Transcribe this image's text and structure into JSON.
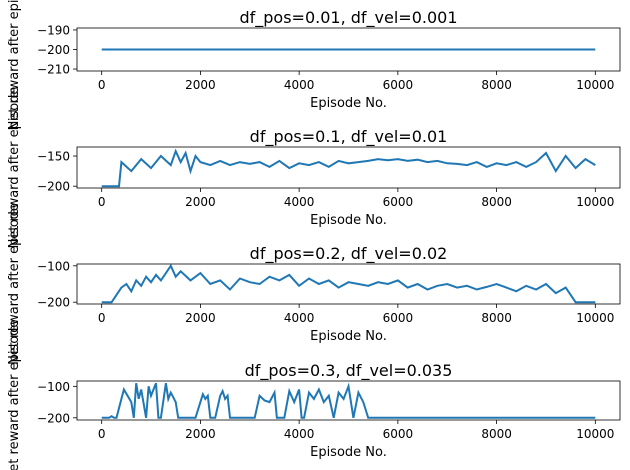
{
  "chart_data": [
    {
      "type": "line",
      "title": "df_pos=0.01, df_vel=0.001",
      "xlabel": "Episode No.",
      "ylabel": "Net reward after episode",
      "xlim": [
        -500,
        10500
      ],
      "ylim": [
        -211,
        -189
      ],
      "xticks": [
        0,
        2000,
        4000,
        6000,
        8000,
        10000
      ],
      "yticks": [
        -190,
        -200,
        -210
      ],
      "series": [
        {
          "color": "#1f77b4",
          "x": [
            0,
            10000
          ],
          "y": [
            -200,
            -200
          ]
        }
      ]
    },
    {
      "type": "line",
      "title": "df_pos=0.1, df_vel=0.01",
      "xlabel": "Episode No.",
      "ylabel": "Net reward after episode",
      "xlim": [
        -500,
        10500
      ],
      "ylim": [
        -203,
        -135
      ],
      "xticks": [
        0,
        2000,
        4000,
        6000,
        8000,
        10000
      ],
      "yticks": [
        -150,
        -200
      ],
      "series": [
        {
          "color": "#1f77b4",
          "x": [
            0,
            350,
            400,
            600,
            800,
            1000,
            1200,
            1400,
            1500,
            1600,
            1700,
            1800,
            1900,
            2000,
            2200,
            2400,
            2600,
            2800,
            3000,
            3200,
            3400,
            3600,
            3800,
            4000,
            4200,
            4400,
            4600,
            4800,
            5000,
            5200,
            5400,
            5600,
            5800,
            6000,
            6200,
            6400,
            6600,
            6800,
            7000,
            7200,
            7400,
            7600,
            7800,
            8000,
            8200,
            8400,
            8600,
            8800,
            9000,
            9200,
            9400,
            9600,
            9800,
            10000
          ],
          "y": [
            -200,
            -200,
            -160,
            -175,
            -155,
            -170,
            -150,
            -165,
            -142,
            -160,
            -145,
            -175,
            -150,
            -160,
            -165,
            -158,
            -165,
            -160,
            -163,
            -160,
            -168,
            -158,
            -170,
            -162,
            -165,
            -160,
            -168,
            -158,
            -162,
            -160,
            -158,
            -155,
            -157,
            -155,
            -158,
            -156,
            -160,
            -158,
            -162,
            -163,
            -165,
            -160,
            -168,
            -162,
            -165,
            -160,
            -168,
            -160,
            -145,
            -175,
            -150,
            -170,
            -155,
            -165
          ]
        }
      ]
    },
    {
      "type": "line",
      "title": "df_pos=0.2, df_vel=0.02",
      "xlabel": "Episode No.",
      "ylabel": "Net reward after episode",
      "xlim": [
        -500,
        10500
      ],
      "ylim": [
        -205,
        -95
      ],
      "xticks": [
        0,
        2000,
        4000,
        6000,
        8000,
        10000
      ],
      "yticks": [
        -100,
        -200
      ],
      "series": [
        {
          "color": "#1f77b4",
          "x": [
            0,
            200,
            300,
            400,
            500,
            600,
            700,
            800,
            900,
            1000,
            1100,
            1200,
            1300,
            1400,
            1500,
            1600,
            1800,
            2000,
            2200,
            2400,
            2600,
            2800,
            3000,
            3200,
            3400,
            3600,
            3800,
            4000,
            4200,
            4400,
            4600,
            4800,
            5000,
            5200,
            5400,
            5600,
            5800,
            6000,
            6200,
            6400,
            6600,
            6800,
            7000,
            7200,
            7400,
            7600,
            7800,
            8000,
            8200,
            8400,
            8600,
            8800,
            9000,
            9200,
            9400,
            9600,
            10000
          ],
          "y": [
            -200,
            -200,
            -180,
            -160,
            -150,
            -170,
            -140,
            -155,
            -130,
            -145,
            -125,
            -140,
            -120,
            -100,
            -130,
            -115,
            -140,
            -120,
            -150,
            -140,
            -165,
            -135,
            -145,
            -150,
            -130,
            -140,
            -125,
            -155,
            -135,
            -150,
            -140,
            -160,
            -145,
            -150,
            -155,
            -145,
            -150,
            -140,
            -160,
            -150,
            -165,
            -155,
            -150,
            -160,
            -155,
            -165,
            -158,
            -150,
            -160,
            -170,
            -155,
            -165,
            -150,
            -175,
            -160,
            -200,
            -200
          ]
        }
      ]
    },
    {
      "type": "line",
      "title": "df_pos=0.3, df_vel=0.035",
      "xlabel": "Episode No.",
      "ylabel": "Net reward after episode",
      "xlim": [
        -500,
        10500
      ],
      "ylim": [
        -207,
        -83
      ],
      "xticks": [
        0,
        2000,
        4000,
        6000,
        8000,
        10000
      ],
      "yticks": [
        -100,
        -200
      ],
      "series": [
        {
          "color": "#1f77b4",
          "x": [
            0,
            150,
            200,
            250,
            300,
            400,
            450,
            600,
            650,
            700,
            750,
            800,
            900,
            950,
            1000,
            1100,
            1150,
            1200,
            1300,
            1350,
            1400,
            1500,
            1550,
            1600,
            1700,
            1800,
            1900,
            2000,
            2050,
            2100,
            2150,
            2200,
            2300,
            2400,
            2450,
            2500,
            2550,
            2600,
            2700,
            2800,
            2900,
            3000,
            3100,
            3200,
            3300,
            3400,
            3500,
            3550,
            3600,
            3700,
            3800,
            3900,
            4000,
            4050,
            4100,
            4200,
            4300,
            4400,
            4500,
            4600,
            4700,
            4800,
            4900,
            5000,
            5100,
            5200,
            5300,
            5400,
            5450,
            6000,
            7000,
            8000,
            9000,
            10000
          ],
          "y": [
            -200,
            -200,
            -195,
            -200,
            -200,
            -140,
            -110,
            -150,
            -200,
            -90,
            -140,
            -110,
            -200,
            -100,
            -130,
            -90,
            -200,
            -200,
            -90,
            -140,
            -120,
            -150,
            -200,
            -200,
            -200,
            -200,
            -200,
            -150,
            -125,
            -140,
            -130,
            -200,
            -200,
            -130,
            -115,
            -140,
            -130,
            -200,
            -200,
            -200,
            -200,
            -200,
            -200,
            -130,
            -145,
            -150,
            -120,
            -200,
            -200,
            -200,
            -115,
            -150,
            -110,
            -200,
            -200,
            -120,
            -140,
            -110,
            -150,
            -130,
            -200,
            -120,
            -140,
            -100,
            -200,
            -120,
            -150,
            -200,
            -200,
            -200,
            -200,
            -200,
            -200,
            -200
          ]
        }
      ]
    }
  ]
}
